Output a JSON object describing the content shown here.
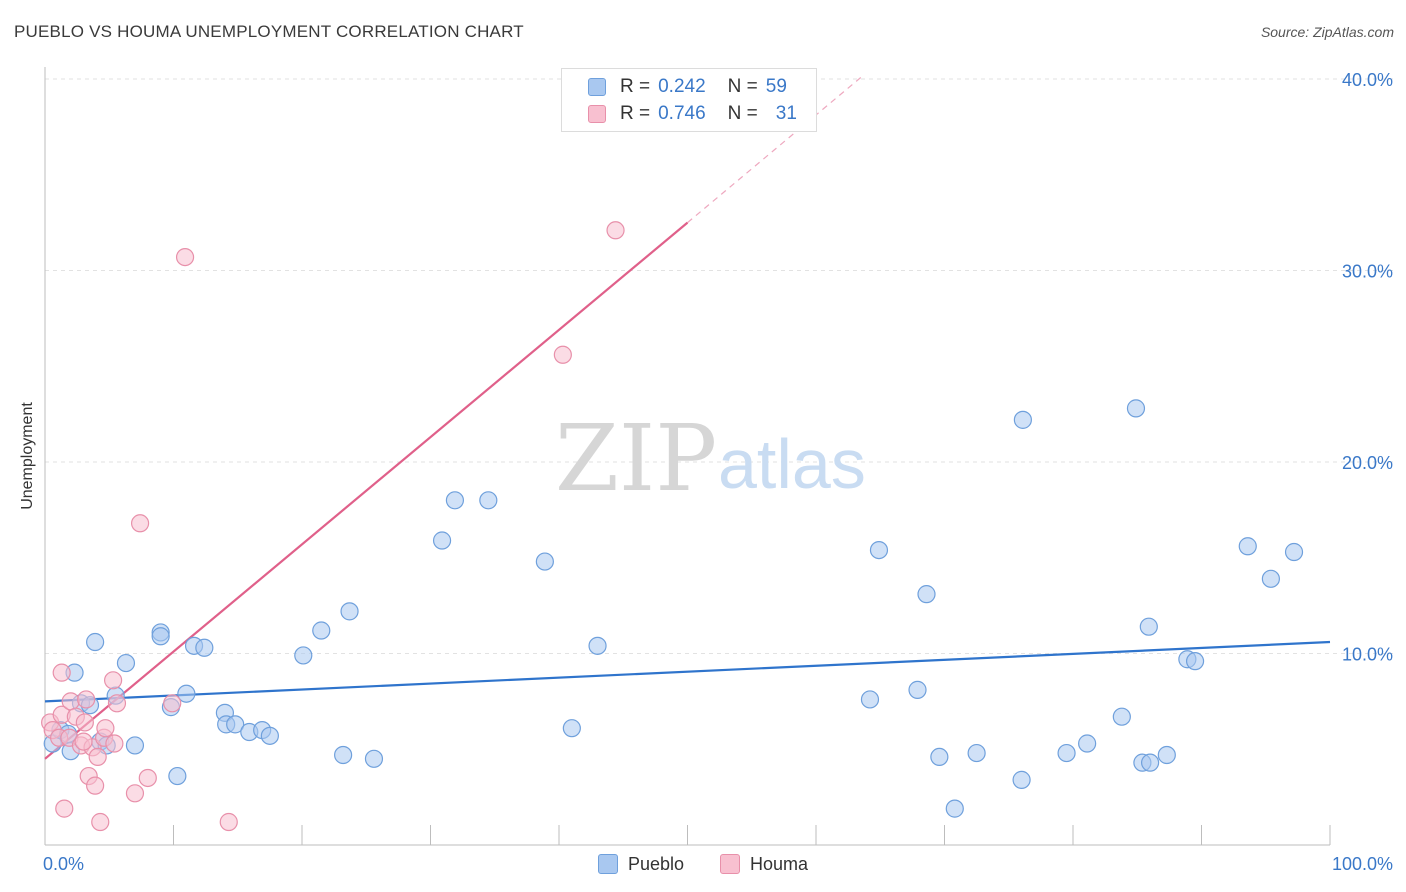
{
  "title": "PUEBLO VS HOUMA UNEMPLOYMENT CORRELATION CHART",
  "source": "Source: ZipAtlas.com",
  "watermark": {
    "zip": "ZIP",
    "atlas": "atlas"
  },
  "legend": {
    "rows": [
      {
        "r_label": "R =",
        "r_value": "0.242",
        "n_label": "N =",
        "n_value": "59",
        "color": "#a9c8f0",
        "border": "#6fa0dc"
      },
      {
        "r_label": "R =",
        "r_value": "0.746",
        "n_label": "N =",
        "n_value": "31",
        "color": "#f8c0d0",
        "border": "#e890aa"
      }
    ]
  },
  "bottom_legend": [
    {
      "label": "Pueblo",
      "color": "#a9c8f0",
      "border": "#6fa0dc"
    },
    {
      "label": "Houma",
      "color": "#f8c0d0",
      "border": "#e890aa"
    }
  ],
  "chart_data": {
    "type": "scatter",
    "title": "PUEBLO VS HOUMA UNEMPLOYMENT CORRELATION CHART",
    "xlabel": "",
    "ylabel": "Unemployment",
    "xlim": [
      0,
      100
    ],
    "ylim": [
      0,
      40
    ],
    "x_tick_labels": [
      "0.0%",
      "100.0%"
    ],
    "y_ticks": [
      10,
      20,
      30,
      40
    ],
    "y_tick_labels": [
      "10.0%",
      "20.0%",
      "30.0%",
      "40.0%"
    ],
    "grid": true,
    "legend_position": "top-center",
    "series": [
      {
        "name": "Pueblo",
        "color": "#a9c8f0",
        "stroke": "#6fa0dc",
        "trend_color": "#2f74cc",
        "trend": {
          "x0": 0,
          "y0": 7.5,
          "x1": 100,
          "y1": 10.6
        },
        "points": [
          [
            0.6,
            5.3
          ],
          [
            1.2,
            6.0
          ],
          [
            1.8,
            5.8
          ],
          [
            2.0,
            4.9
          ],
          [
            2.3,
            9.0
          ],
          [
            2.8,
            7.4
          ],
          [
            3.5,
            7.3
          ],
          [
            3.9,
            10.6
          ],
          [
            4.3,
            5.4
          ],
          [
            4.8,
            5.2
          ],
          [
            5.5,
            7.8
          ],
          [
            6.3,
            9.5
          ],
          [
            7.0,
            5.2
          ],
          [
            9.0,
            11.1
          ],
          [
            9.0,
            10.9
          ],
          [
            9.8,
            7.2
          ],
          [
            10.3,
            3.6
          ],
          [
            11.0,
            7.9
          ],
          [
            11.6,
            10.4
          ],
          [
            12.4,
            10.3
          ],
          [
            14.0,
            6.9
          ],
          [
            14.1,
            6.3
          ],
          [
            14.8,
            6.3
          ],
          [
            15.9,
            5.9
          ],
          [
            16.9,
            6.0
          ],
          [
            17.5,
            5.7
          ],
          [
            20.1,
            9.9
          ],
          [
            21.5,
            11.2
          ],
          [
            23.2,
            4.7
          ],
          [
            23.7,
            12.2
          ],
          [
            25.6,
            4.5
          ],
          [
            30.9,
            15.9
          ],
          [
            31.9,
            18.0
          ],
          [
            34.5,
            18.0
          ],
          [
            38.9,
            14.8
          ],
          [
            41.0,
            6.1
          ],
          [
            43.0,
            10.4
          ],
          [
            64.2,
            7.6
          ],
          [
            64.9,
            15.4
          ],
          [
            67.9,
            8.1
          ],
          [
            68.6,
            13.1
          ],
          [
            69.6,
            4.6
          ],
          [
            70.8,
            1.9
          ],
          [
            72.5,
            4.8
          ],
          [
            76.0,
            3.4
          ],
          [
            76.1,
            22.2
          ],
          [
            79.5,
            4.8
          ],
          [
            81.1,
            5.3
          ],
          [
            83.8,
            6.7
          ],
          [
            84.9,
            22.8
          ],
          [
            85.4,
            4.3
          ],
          [
            85.9,
            11.4
          ],
          [
            86.0,
            4.3
          ],
          [
            87.3,
            4.7
          ],
          [
            88.9,
            9.7
          ],
          [
            89.5,
            9.6
          ],
          [
            93.6,
            15.6
          ],
          [
            95.4,
            13.9
          ],
          [
            97.2,
            15.3
          ]
        ]
      },
      {
        "name": "Houma",
        "color": "#f8c0d0",
        "stroke": "#e890aa",
        "trend_color": "#e0608a",
        "trend": {
          "x0": 0,
          "y0": 4.5,
          "x1": 50,
          "y1": 32.5
        },
        "trend_dashed": {
          "x0": 50,
          "y0": 32.5,
          "x1": 63.7,
          "y1": 40.2
        },
        "points": [
          [
            0.4,
            6.4
          ],
          [
            0.6,
            6.0
          ],
          [
            1.1,
            5.6
          ],
          [
            1.3,
            6.8
          ],
          [
            1.3,
            9.0
          ],
          [
            1.5,
            1.9
          ],
          [
            1.9,
            5.6
          ],
          [
            2.0,
            7.5
          ],
          [
            2.4,
            6.7
          ],
          [
            2.8,
            5.2
          ],
          [
            3.1,
            6.4
          ],
          [
            3.2,
            7.6
          ],
          [
            3.4,
            3.6
          ],
          [
            3.7,
            5.1
          ],
          [
            3.9,
            3.1
          ],
          [
            4.1,
            4.6
          ],
          [
            4.3,
            1.2
          ],
          [
            4.6,
            5.6
          ],
          [
            4.7,
            6.1
          ],
          [
            5.3,
            8.6
          ],
          [
            5.6,
            7.4
          ],
          [
            7.0,
            2.7
          ],
          [
            7.4,
            16.8
          ],
          [
            8.0,
            3.5
          ],
          [
            9.9,
            7.4
          ],
          [
            10.9,
            30.7
          ],
          [
            14.3,
            1.2
          ],
          [
            40.3,
            25.6
          ],
          [
            44.4,
            32.1
          ],
          [
            5.4,
            5.3
          ],
          [
            3.0,
            5.4
          ]
        ]
      }
    ]
  }
}
